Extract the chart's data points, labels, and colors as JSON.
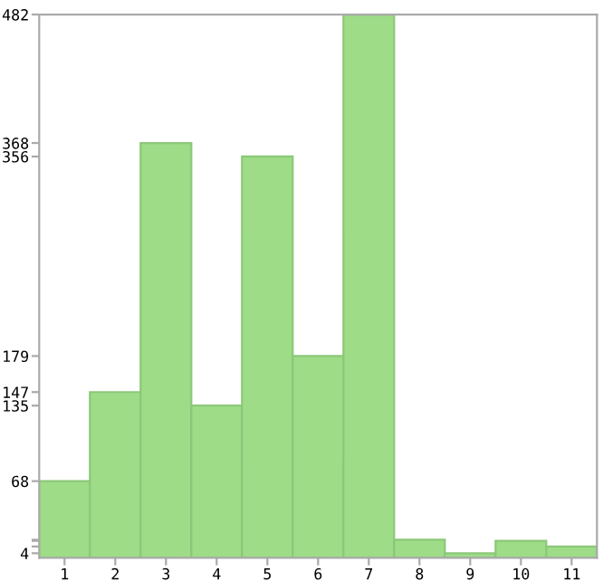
{
  "chart_data": {
    "type": "bar",
    "categories": [
      "1",
      "2",
      "3",
      "4",
      "5",
      "6",
      "7",
      "8",
      "9",
      "10",
      "11"
    ],
    "values": [
      68,
      147,
      368,
      135,
      356,
      179,
      482,
      16,
      4,
      15,
      10
    ],
    "color": "#9edc88",
    "ylim": [
      0,
      482
    ],
    "yticks": [
      4,
      {
        "value": 10,
        "label": null
      },
      {
        "value": 15,
        "label": null
      },
      {
        "value": 16,
        "label": null
      },
      68,
      135,
      147,
      179,
      356,
      368,
      482
    ],
    "grid": false
  }
}
